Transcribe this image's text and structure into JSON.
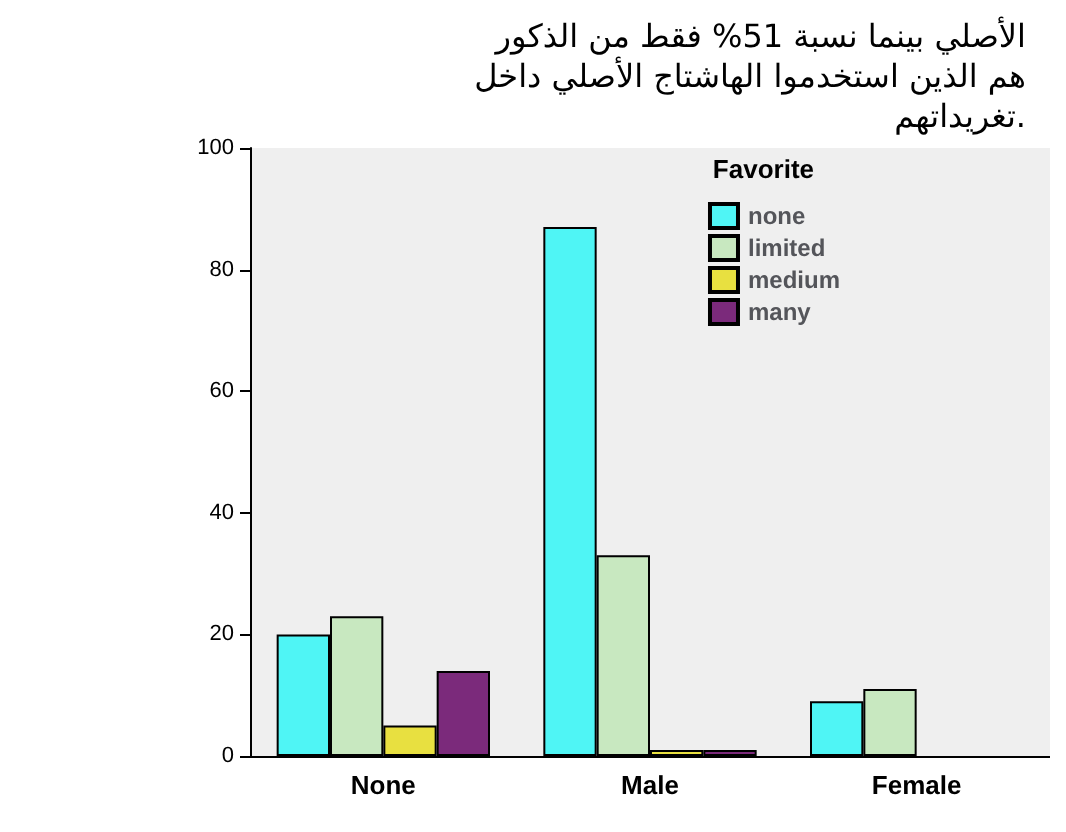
{
  "chart_data": {
    "type": "bar",
    "categories": [
      "None",
      "Male",
      "Female"
    ],
    "series": [
      {
        "name": "none",
        "color": "#4ff5f5",
        "values": [
          20,
          87,
          9
        ]
      },
      {
        "name": "limited",
        "color": "#c8e8c0",
        "values": [
          23,
          33,
          11
        ]
      },
      {
        "name": "medium",
        "color": "#e8e040",
        "values": [
          5,
          1,
          null
        ]
      },
      {
        "name": "many",
        "color": "#7b2a7b",
        "values": [
          14,
          1,
          null
        ]
      }
    ],
    "legend_title": "Favorite",
    "legend": "top right",
    "grid": false,
    "ylim": [
      0,
      100
    ],
    "yticks": [
      0,
      20,
      40,
      60,
      80,
      100
    ],
    "annotations": [
      "الأصلي بينما نسبة 51% فقط من الذكور",
      "هم الذين استخدموا الهاشتاج الأصلي داخل",
      "تغريداتهم."
    ]
  }
}
